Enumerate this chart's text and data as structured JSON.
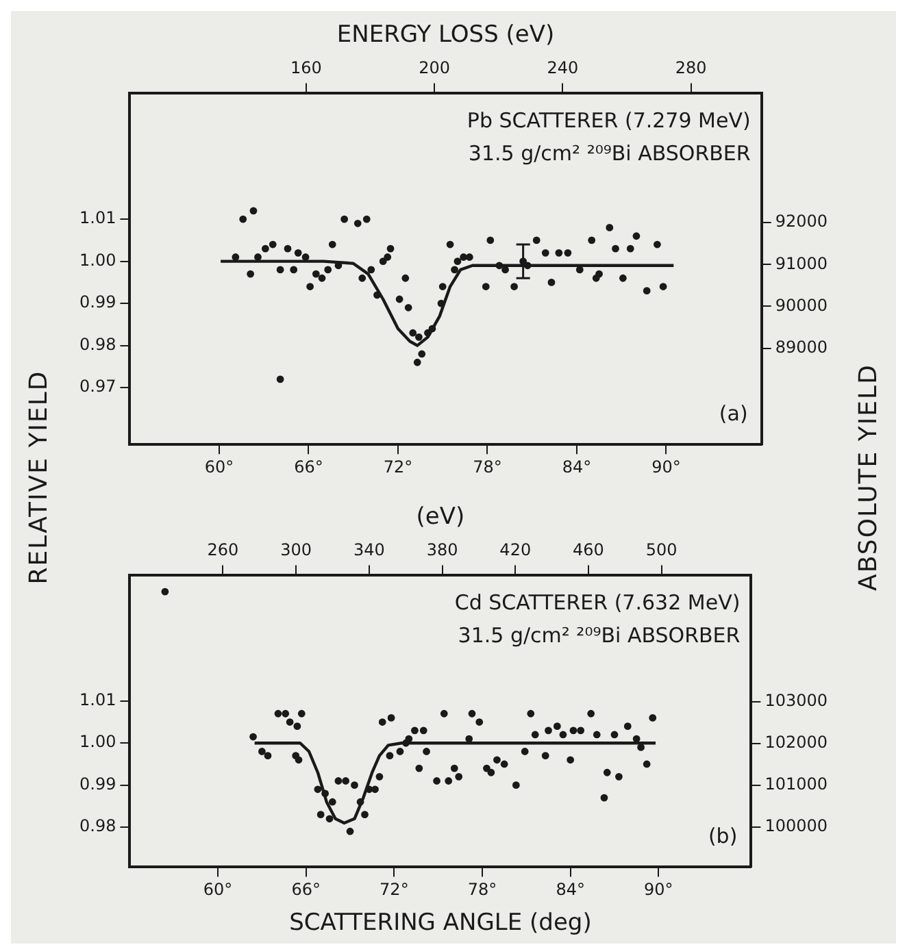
{
  "chart_data": [
    {
      "type": "scatter",
      "x2label": "ENERGY LOSS (eV)",
      "ylabel": "RELATIVE YIELD",
      "y2label": "ABSOLUTE YIELD",
      "annotations": [
        "Pb SCATTERER (7.279 MeV)",
        "31.5 g/cm² ²⁰⁹Bi ABSORBER",
        "(a)"
      ],
      "xlim": [
        54,
        96.4
      ],
      "xticks": [
        {
          "value": 60,
          "label": "60°"
        },
        {
          "value": 66,
          "label": "66°"
        },
        {
          "value": 72,
          "label": "72°"
        },
        {
          "value": 78,
          "label": "78°"
        },
        {
          "value": 84,
          "label": "84°"
        },
        {
          "value": 90,
          "label": "90°"
        }
      ],
      "x2lim": [
        105,
        302
      ],
      "x2ticks": [
        160,
        200,
        240,
        280
      ],
      "ylim": [
        0.9565,
        1.04
      ],
      "yticks": [
        {
          "value": 1.01,
          "label": "1.01"
        },
        {
          "value": 1,
          "label": "1.00"
        },
        {
          "value": 0.99,
          "label": "0.99"
        },
        {
          "value": 0.98,
          "label": "0.98"
        },
        {
          "value": 0.97,
          "label": "0.97"
        }
      ],
      "y2lim": [
        86700,
        95100
      ],
      "y2ticks": [
        92000,
        91000,
        90000,
        89000
      ],
      "grid": false,
      "legend": false,
      "series": [
        {
          "type": "scatter",
          "marker": "circle",
          "color": "#1a1a1a",
          "x": [
            61.1,
            61.6,
            62.3,
            62.1,
            62.6,
            63.1,
            63.6,
            64.1,
            64.1,
            64.6,
            65.0,
            65.3,
            65.8,
            66.1,
            66.5,
            66.9,
            67.3,
            67.6,
            68.0,
            68.4,
            69.3,
            69.9,
            69.6,
            70.2,
            70.6,
            71.0,
            71.5,
            71.3,
            72.5,
            72.1,
            72.7,
            73.0,
            73.4,
            73.6,
            73.3,
            74.0,
            74.3,
            74.9,
            75.0,
            75.5,
            75.8,
            76.0,
            76.4,
            76.8,
            77.9,
            78.2,
            78.8,
            79.2,
            79.8,
            80.4,
            80.7,
            81.3,
            81.9,
            82.3,
            82.8,
            83.4,
            84.2,
            85.0,
            85.3,
            85.5,
            86.2,
            86.6,
            87.1,
            87.6,
            88.0,
            88.7,
            89.4,
            89.8
          ],
          "values": [
            1.001,
            1.01,
            1.012,
            0.997,
            1.001,
            1.003,
            1.004,
            0.998,
            0.972,
            1.003,
            0.998,
            1.002,
            1.001,
            0.994,
            0.997,
            0.996,
            0.998,
            1.004,
            0.999,
            1.01,
            1.009,
            1.01,
            0.996,
            0.998,
            0.992,
            1.0,
            1.003,
            1.001,
            0.996,
            0.991,
            0.989,
            0.983,
            0.982,
            0.978,
            0.976,
            0.983,
            0.984,
            0.99,
            0.994,
            1.004,
            0.998,
            1.0,
            1.001,
            1.001,
            0.994,
            1.005,
            0.999,
            0.998,
            0.994,
            1.0,
            0.999,
            1.005,
            1.002,
            0.995,
            1.002,
            1.002,
            0.998,
            1.005,
            0.996,
            0.997,
            1.008,
            1.003,
            0.996,
            1.003,
            1.006,
            0.993,
            1.004,
            0.994
          ],
          "errors": [
            null,
            null,
            null,
            null,
            null,
            null,
            null,
            null,
            null,
            null,
            null,
            null,
            null,
            null,
            null,
            null,
            null,
            null,
            null,
            null,
            null,
            null,
            null,
            null,
            null,
            null,
            null,
            null,
            null,
            null,
            null,
            null,
            null,
            null,
            null,
            null,
            null,
            null,
            null,
            null,
            null,
            null,
            null,
            null,
            null,
            null,
            null,
            null,
            null,
            0.004,
            null,
            null,
            null,
            null,
            null,
            null,
            null,
            null,
            null,
            null,
            null,
            null,
            null,
            null,
            null,
            null,
            null,
            null
          ]
        },
        {
          "type": "line",
          "marker": "none",
          "color": "#1a1a1a",
          "x": [
            60.1,
            67,
            69,
            70,
            71,
            72,
            72.8,
            73.3,
            74,
            74.8,
            75.5,
            76.2,
            77,
            90.5
          ],
          "values": [
            1.0,
            1.0,
            0.9995,
            0.997,
            0.991,
            0.984,
            0.981,
            0.98,
            0.982,
            0.987,
            0.994,
            0.998,
            0.999,
            0.999
          ]
        }
      ]
    },
    {
      "type": "scatter",
      "x2label": "(eV)",
      "xlabel": "SCATTERING ANGLE (deg)",
      "annotations": [
        "Cd SCATTERER (7.632 MeV)",
        "31.5 g/cm² ²⁰⁹Bi ABSORBER",
        "(b)"
      ],
      "xlim": [
        54,
        96.3
      ],
      "xticks": [
        {
          "value": 60,
          "label": "60°"
        },
        {
          "value": 66,
          "label": "66°"
        },
        {
          "value": 72,
          "label": "72°"
        },
        {
          "value": 78,
          "label": "78°"
        },
        {
          "value": 84,
          "label": "84°"
        },
        {
          "value": 90,
          "label": "90°"
        }
      ],
      "x2lim": [
        209,
        549
      ],
      "x2ticks": [
        260,
        300,
        340,
        380,
        420,
        460,
        500
      ],
      "ylim": [
        0.9705,
        1.04
      ],
      "yticks": [
        {
          "value": 1.01,
          "label": "1.01"
        },
        {
          "value": 1,
          "label": "1.00"
        },
        {
          "value": 0.99,
          "label": "0.99"
        },
        {
          "value": 0.98,
          "label": "0.98"
        }
      ],
      "y2lim": [
        99046,
        106030
      ],
      "y2ticks": [
        103000,
        102000,
        101000,
        100000
      ],
      "grid": false,
      "legend": false,
      "series": [
        {
          "type": "scatter",
          "marker": "circle",
          "color": "#1a1a1a",
          "x": [
            56.4,
            62.4,
            63.0,
            63.4,
            64.1,
            64.6,
            64.9,
            65.4,
            65.7,
            65.3,
            65.5,
            66.8,
            67.3,
            67.0,
            67.6,
            67.8,
            68.2,
            68.7,
            69.0,
            69.3,
            69.7,
            70.0,
            70.3,
            70.7,
            71.0,
            71.2,
            71.8,
            71.7,
            72.4,
            72.8,
            73.0,
            73.4,
            74.0,
            73.7,
            74.2,
            74.9,
            75.4,
            75.7,
            76.1,
            76.4,
            77.1,
            77.3,
            77.8,
            78.3,
            78.6,
            79.0,
            79.5,
            80.3,
            80.9,
            81.3,
            81.6,
            82.3,
            82.5,
            83.1,
            83.5,
            84.0,
            84.2,
            84.7,
            85.4,
            85.8,
            86.3,
            86.5,
            87.3,
            87.0,
            87.9,
            88.5,
            88.8,
            89.2,
            89.6
          ],
          "values": [
            1.036,
            1.0015,
            0.998,
            0.997,
            1.007,
            1.007,
            1.005,
            1.004,
            1.007,
            0.997,
            0.996,
            0.989,
            0.988,
            0.983,
            0.982,
            0.986,
            0.991,
            0.991,
            0.979,
            0.99,
            0.986,
            0.983,
            0.989,
            0.989,
            0.992,
            1.005,
            1.006,
            0.997,
            0.998,
            1.0,
            1.001,
            1.003,
            1.003,
            0.994,
            0.998,
            0.991,
            1.007,
            0.991,
            0.994,
            0.992,
            1.001,
            1.007,
            1.005,
            0.994,
            0.993,
            0.996,
            0.995,
            0.99,
            0.998,
            1.007,
            1.002,
            0.997,
            1.003,
            1.004,
            1.002,
            0.996,
            1.003,
            1.003,
            1.007,
            1.002,
            0.987,
            0.993,
            0.992,
            1.002,
            1.004,
            1.001,
            0.999,
            0.995,
            1.006
          ]
        },
        {
          "type": "line",
          "marker": "none",
          "color": "#1a1a1a",
          "x": [
            62.5,
            65.6,
            66.2,
            66.8,
            67.4,
            68.0,
            68.6,
            69.3,
            69.9,
            70.5,
            71.0,
            71.6,
            72.5,
            89.8
          ],
          "values": [
            1.0,
            1.0,
            0.998,
            0.993,
            0.986,
            0.982,
            0.981,
            0.982,
            0.987,
            0.993,
            0.997,
            0.9995,
            1.0,
            1.0
          ]
        }
      ]
    }
  ]
}
